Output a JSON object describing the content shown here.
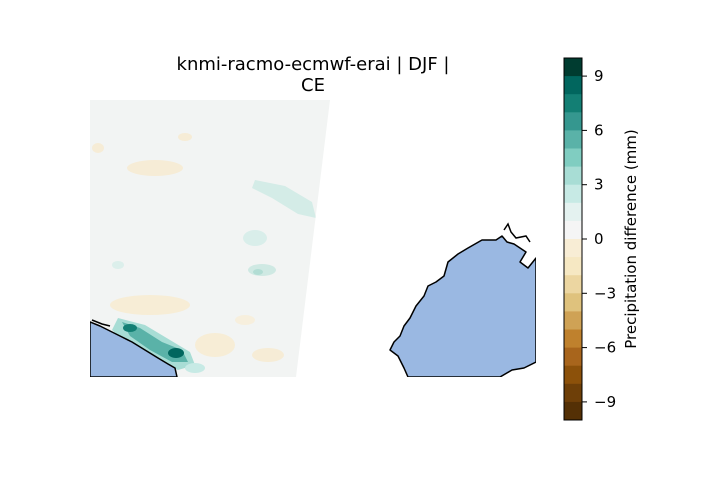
{
  "title": {
    "line1": "knmi-racmo-ecmwf-erai | DJF |",
    "line2": "CE"
  },
  "colorbar": {
    "label": "Precipitation difference (mm)",
    "range": [
      -10,
      10
    ],
    "ticks": [
      {
        "value": 9,
        "label": "9"
      },
      {
        "value": 6,
        "label": "6"
      },
      {
        "value": 3,
        "label": "3"
      },
      {
        "value": 0,
        "label": "0"
      },
      {
        "value": -3,
        "label": "−3"
      },
      {
        "value": -6,
        "label": "−6"
      },
      {
        "value": -9,
        "label": "−9"
      }
    ],
    "colors_top_to_bottom": [
      "#003c30",
      "#01665e",
      "#137f74",
      "#35978f",
      "#5ab2a8",
      "#80cdc1",
      "#a8ddd5",
      "#c7eae5",
      "#e4f2f0",
      "#f5f5f5",
      "#f8edd5",
      "#f6e8c3",
      "#ecd6a1",
      "#dfc27d",
      "#cfa255",
      "#bf812d",
      "#a8651c",
      "#8c510a",
      "#6e3f08",
      "#543005"
    ]
  },
  "colors": {
    "ocean": "#9ab8e2",
    "domain_background": "#f2f4f3",
    "coastline": "#000000"
  }
}
